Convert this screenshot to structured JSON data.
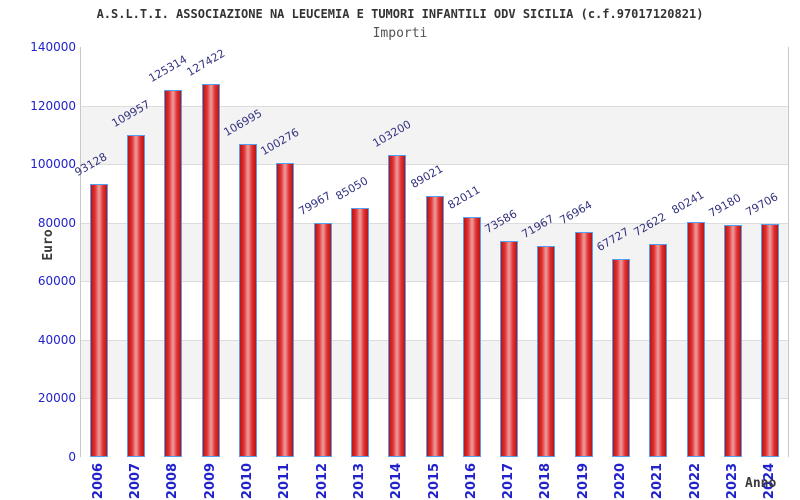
{
  "header": {
    "title": "A.S.L.T.I. ASSOCIAZIONE NA LEUCEMIA E TUMORI INFANTILI ODV SICILIA (c.f.97017120821)",
    "subtitle": "Importi"
  },
  "chart_data": {
    "type": "bar",
    "title": "A.S.L.T.I. ASSOCIAZIONE NA LEUCEMIA E TUMORI INFANTILI ODV SICILIA (c.f.97017120821)",
    "subtitle": "Importi",
    "xlabel": "Anno",
    "ylabel": "Euro",
    "categories": [
      "2006",
      "2007",
      "2008",
      "2009",
      "2010",
      "2011",
      "2012",
      "2013",
      "2014",
      "2015",
      "2016",
      "2017",
      "2018",
      "2019",
      "2020",
      "2021",
      "2022",
      "2023",
      "2024"
    ],
    "values": [
      93128,
      109957,
      125314,
      127422,
      106995,
      100276,
      79967,
      85050,
      103200,
      89021,
      82011,
      73586,
      71967,
      76964,
      67727,
      72622,
      80241,
      79180,
      79706
    ],
    "ylim": [
      0,
      140000
    ],
    "ytick_step": 20000,
    "grid": true,
    "legend": "none",
    "value_labels_rotated_deg": -30,
    "colors": {
      "title_text": "#333333",
      "subtitle_text": "#555555",
      "axis_tick_label": "#2222cc",
      "value_label": "#333380",
      "axis_title": "#3a3a3a",
      "bar_border": "#55a0ee",
      "bar_red_dark": "#b51717",
      "bar_red_bright": "#e53030",
      "bar_red_light": "#e9a0a0",
      "band_fill": "#f3f3f3",
      "gridline": "#dcdcdc",
      "plot_border": "#c8c8c8",
      "background": "#ffffff"
    }
  }
}
